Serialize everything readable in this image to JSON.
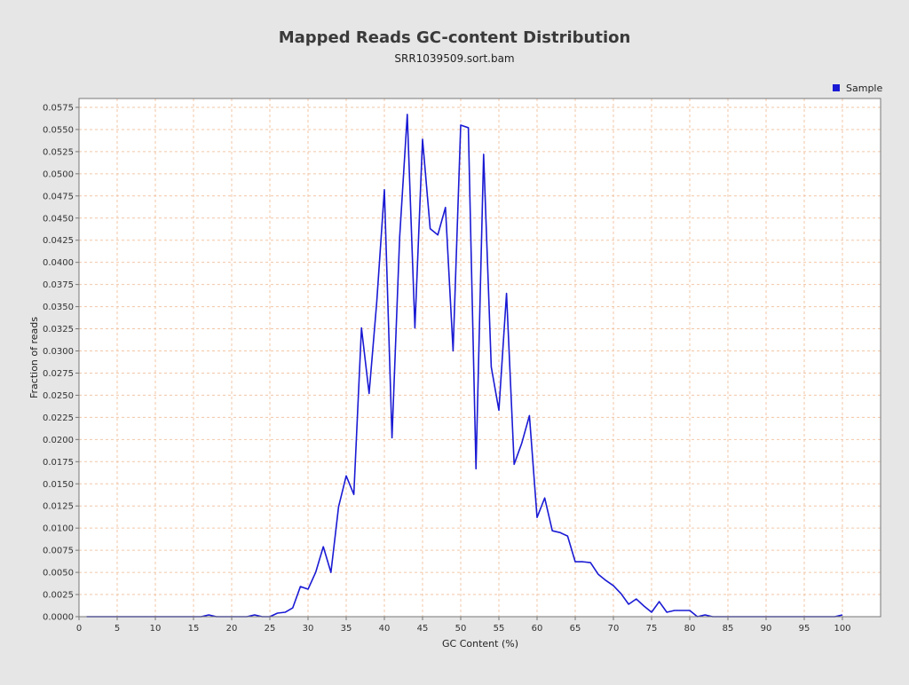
{
  "chart_data": {
    "type": "line",
    "title": "Mapped Reads GC-content Distribution",
    "subtitle": "SRR1039509.sort.bam",
    "xlabel": "GC Content (%)",
    "ylabel": "Fraction of reads",
    "xlim": [
      0,
      105
    ],
    "ylim": [
      0,
      0.0585
    ],
    "x_ticks": [
      0,
      5,
      10,
      15,
      20,
      25,
      30,
      35,
      40,
      45,
      50,
      55,
      60,
      65,
      70,
      75,
      80,
      85,
      90,
      95,
      100
    ],
    "y_ticks": [
      "0.0000",
      "0.0025",
      "0.0050",
      "0.0075",
      "0.0100",
      "0.0125",
      "0.0150",
      "0.0175",
      "0.0200",
      "0.0225",
      "0.0250",
      "0.0275",
      "0.0300",
      "0.0325",
      "0.0350",
      "0.0375",
      "0.0400",
      "0.0425",
      "0.0450",
      "0.0475",
      "0.0500",
      "0.0525",
      "0.0550",
      "0.0575"
    ],
    "grid": true,
    "legend_position": "top-right",
    "series": [
      {
        "name": "Sample",
        "color": "#1a1ad4",
        "x": [
          1,
          2,
          3,
          4,
          5,
          6,
          7,
          8,
          9,
          10,
          11,
          12,
          13,
          14,
          15,
          16,
          17,
          18,
          19,
          20,
          21,
          22,
          23,
          24,
          25,
          26,
          27,
          28,
          29,
          30,
          31,
          32,
          33,
          34,
          35,
          36,
          37,
          38,
          39,
          40,
          41,
          42,
          43,
          44,
          45,
          46,
          47,
          48,
          49,
          50,
          51,
          52,
          53,
          54,
          55,
          56,
          57,
          58,
          59,
          60,
          61,
          62,
          63,
          64,
          65,
          66,
          67,
          68,
          69,
          70,
          71,
          72,
          73,
          74,
          75,
          76,
          77,
          78,
          79,
          80,
          81,
          82,
          83,
          84,
          85,
          86,
          87,
          88,
          89,
          90,
          91,
          92,
          93,
          94,
          95,
          96,
          97,
          98,
          99,
          100
        ],
        "values": [
          0,
          0,
          0,
          0,
          0,
          0,
          0,
          0,
          0,
          0,
          0,
          0,
          0,
          0,
          0,
          0,
          0.0002,
          0,
          0,
          0,
          0,
          0,
          0.0002,
          0,
          0,
          0.0004,
          0.0005,
          0.001,
          0.0034,
          0.0031,
          0.005,
          0.0079,
          0.005,
          0.0124,
          0.0159,
          0.0138,
          0.0326,
          0.0252,
          0.0355,
          0.0482,
          0.0202,
          0.0428,
          0.0567,
          0.0326,
          0.0539,
          0.0438,
          0.0431,
          0.0462,
          0.03,
          0.0555,
          0.0552,
          0.0167,
          0.0522,
          0.0282,
          0.0233,
          0.0365,
          0.0172,
          0.0196,
          0.0227,
          0.0112,
          0.0134,
          0.0097,
          0.0095,
          0.0091,
          0.0062,
          0.0062,
          0.0061,
          0.0048,
          0.0041,
          0.0035,
          0.0026,
          0.0014,
          0.002,
          0.0012,
          0.0005,
          0.0017,
          0.0005,
          0.0007,
          0.0007,
          0.0007,
          0,
          0.0002,
          0,
          0,
          0,
          0,
          0,
          0,
          0,
          0,
          0,
          0,
          0,
          0,
          0,
          0,
          0,
          0,
          0,
          0.0002
        ]
      }
    ]
  }
}
